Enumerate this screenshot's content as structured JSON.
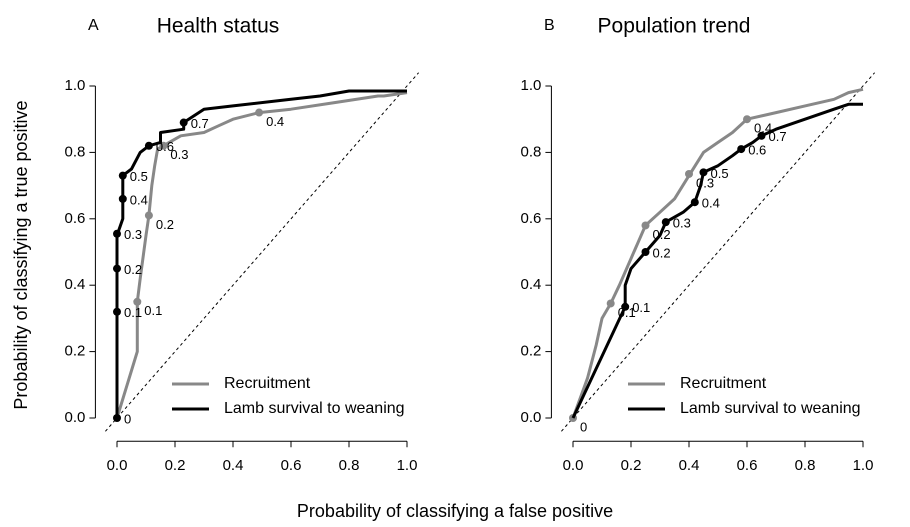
{
  "xlabel": "Probability of classifying a false positive",
  "ylabel": "Probability of classifying a true positive",
  "chart_data": [
    {
      "type": "line",
      "panel": "A",
      "title": "Health status",
      "xlim": [
        -0.04,
        1.04
      ],
      "ylim": [
        -0.04,
        1.04
      ],
      "xticks": [
        {
          "value": 0,
          "label": "0.0"
        },
        {
          "value": 0.2,
          "label": "0.2"
        },
        {
          "value": 0.4,
          "label": "0.4"
        },
        {
          "value": 0.6,
          "label": "0.6"
        },
        {
          "value": 0.8,
          "label": "0.8"
        },
        {
          "value": 1,
          "label": "1.0"
        }
      ],
      "yticks": [
        {
          "value": 0,
          "label": "0.0"
        },
        {
          "value": 0.2,
          "label": "0.2"
        },
        {
          "value": 0.4,
          "label": "0.4"
        },
        {
          "value": 0.6,
          "label": "0.6"
        },
        {
          "value": 0.8,
          "label": "0.8"
        },
        {
          "value": 1,
          "label": "1.0"
        }
      ],
      "series": [
        {
          "name": "Recruitment",
          "color": "#888888",
          "x": [
            0,
            0.07,
            0.07,
            0.08,
            0.1,
            0.11,
            0.12,
            0.13,
            0.14,
            0.18,
            0.22,
            0.3,
            0.35,
            0.4,
            0.49,
            0.6,
            0.75,
            0.9,
            0.92,
            1
          ],
          "values": [
            0,
            0.2,
            0.35,
            0.42,
            0.55,
            0.61,
            0.7,
            0.76,
            0.81,
            0.83,
            0.85,
            0.86,
            0.88,
            0.9,
            0.92,
            0.93,
            0.95,
            0.97,
            0.97,
            0.98
          ],
          "points": [
            {
              "x": 0.07,
              "y": 0.35,
              "label": 0.1
            },
            {
              "x": 0.11,
              "y": 0.61,
              "label": 0.2
            },
            {
              "x": 0.16,
              "y": 0.82,
              "label": 0.3
            },
            {
              "x": 0.49,
              "y": 0.92,
              "label": 0.4
            }
          ]
        },
        {
          "name": "Lamb survival to weaning",
          "color": "#000000",
          "x": [
            0,
            0,
            0,
            0,
            0.02,
            0.02,
            0.02,
            0.05,
            0.08,
            0.11,
            0.15,
            0.15,
            0.23,
            0.23,
            0.3,
            0.4,
            0.6,
            0.7,
            0.8,
            1
          ],
          "values": [
            0,
            0.32,
            0.45,
            0.55,
            0.6,
            0.66,
            0.73,
            0.75,
            0.8,
            0.82,
            0.83,
            0.86,
            0.87,
            0.89,
            0.93,
            0.94,
            0.96,
            0.97,
            0.985,
            0.985
          ],
          "points": [
            {
              "x": 0,
              "y": 0,
              "label": 0
            },
            {
              "x": 0,
              "y": 0.32,
              "label": 0.1
            },
            {
              "x": 0,
              "y": 0.45,
              "label": 0.2
            },
            {
              "x": 0,
              "y": 0.555,
              "label": 0.3
            },
            {
              "x": 0.02,
              "y": 0.66,
              "label": 0.4
            },
            {
              "x": 0.02,
              "y": 0.73,
              "label": 0.5
            },
            {
              "x": 0.11,
              "y": 0.82,
              "label": 0.6
            },
            {
              "x": 0.23,
              "y": 0.89,
              "label": 0.7
            }
          ]
        }
      ]
    },
    {
      "type": "line",
      "panel": "B",
      "title": "Population trend",
      "xlim": [
        -0.04,
        1.04
      ],
      "ylim": [
        -0.04,
        1.04
      ],
      "xticks": [
        {
          "value": 0,
          "label": "0.0"
        },
        {
          "value": 0.2,
          "label": "0.2"
        },
        {
          "value": 0.4,
          "label": "0.4"
        },
        {
          "value": 0.6,
          "label": "0.6"
        },
        {
          "value": 0.8,
          "label": "0.8"
        },
        {
          "value": 1,
          "label": "1.0"
        }
      ],
      "yticks": [
        {
          "value": 0,
          "label": "0.0"
        },
        {
          "value": 0.2,
          "label": "0.2"
        },
        {
          "value": 0.4,
          "label": "0.4"
        },
        {
          "value": 0.6,
          "label": "0.6"
        },
        {
          "value": 0.8,
          "label": "0.8"
        },
        {
          "value": 1,
          "label": "1.0"
        }
      ],
      "series": [
        {
          "name": "Recruitment",
          "color": "#888888",
          "x": [
            0,
            0.05,
            0.08,
            0.1,
            0.13,
            0.16,
            0.2,
            0.25,
            0.3,
            0.35,
            0.4,
            0.45,
            0.5,
            0.55,
            0.6,
            0.7,
            0.8,
            0.9,
            0.95,
            1
          ],
          "values": [
            0,
            0.12,
            0.22,
            0.3,
            0.345,
            0.4,
            0.48,
            0.58,
            0.62,
            0.66,
            0.73,
            0.8,
            0.83,
            0.86,
            0.9,
            0.92,
            0.94,
            0.96,
            0.98,
            0.99
          ],
          "points": [
            {
              "x": 0,
              "y": 0,
              "label": 0
            },
            {
              "x": 0.13,
              "y": 0.345,
              "label": 0.1
            },
            {
              "x": 0.25,
              "y": 0.58,
              "label": 0.2
            },
            {
              "x": 0.4,
              "y": 0.735,
              "label": 0.3
            },
            {
              "x": 0.6,
              "y": 0.9,
              "label": 0.4
            }
          ]
        },
        {
          "name": "Lamb survival to weaning",
          "color": "#000000",
          "x": [
            0,
            0.18,
            0.18,
            0.2,
            0.25,
            0.3,
            0.32,
            0.38,
            0.42,
            0.44,
            0.45,
            0.5,
            0.55,
            0.58,
            0.62,
            0.65,
            0.7,
            0.8,
            0.9,
            0.95,
            1
          ],
          "values": [
            0,
            0.335,
            0.4,
            0.45,
            0.5,
            0.55,
            0.59,
            0.62,
            0.65,
            0.7,
            0.74,
            0.76,
            0.79,
            0.81,
            0.83,
            0.85,
            0.87,
            0.9,
            0.93,
            0.945,
            0.945
          ],
          "points": [
            {
              "x": 0.18,
              "y": 0.335,
              "label": 0.1
            },
            {
              "x": 0.25,
              "y": 0.5,
              "label": 0.2
            },
            {
              "x": 0.32,
              "y": 0.59,
              "label": 0.3
            },
            {
              "x": 0.42,
              "y": 0.65,
              "label": 0.4
            },
            {
              "x": 0.45,
              "y": 0.74,
              "label": 0.5
            },
            {
              "x": 0.58,
              "y": 0.81,
              "label": 0.6
            },
            {
              "x": 0.65,
              "y": 0.85,
              "label": 0.7
            }
          ]
        }
      ]
    }
  ]
}
